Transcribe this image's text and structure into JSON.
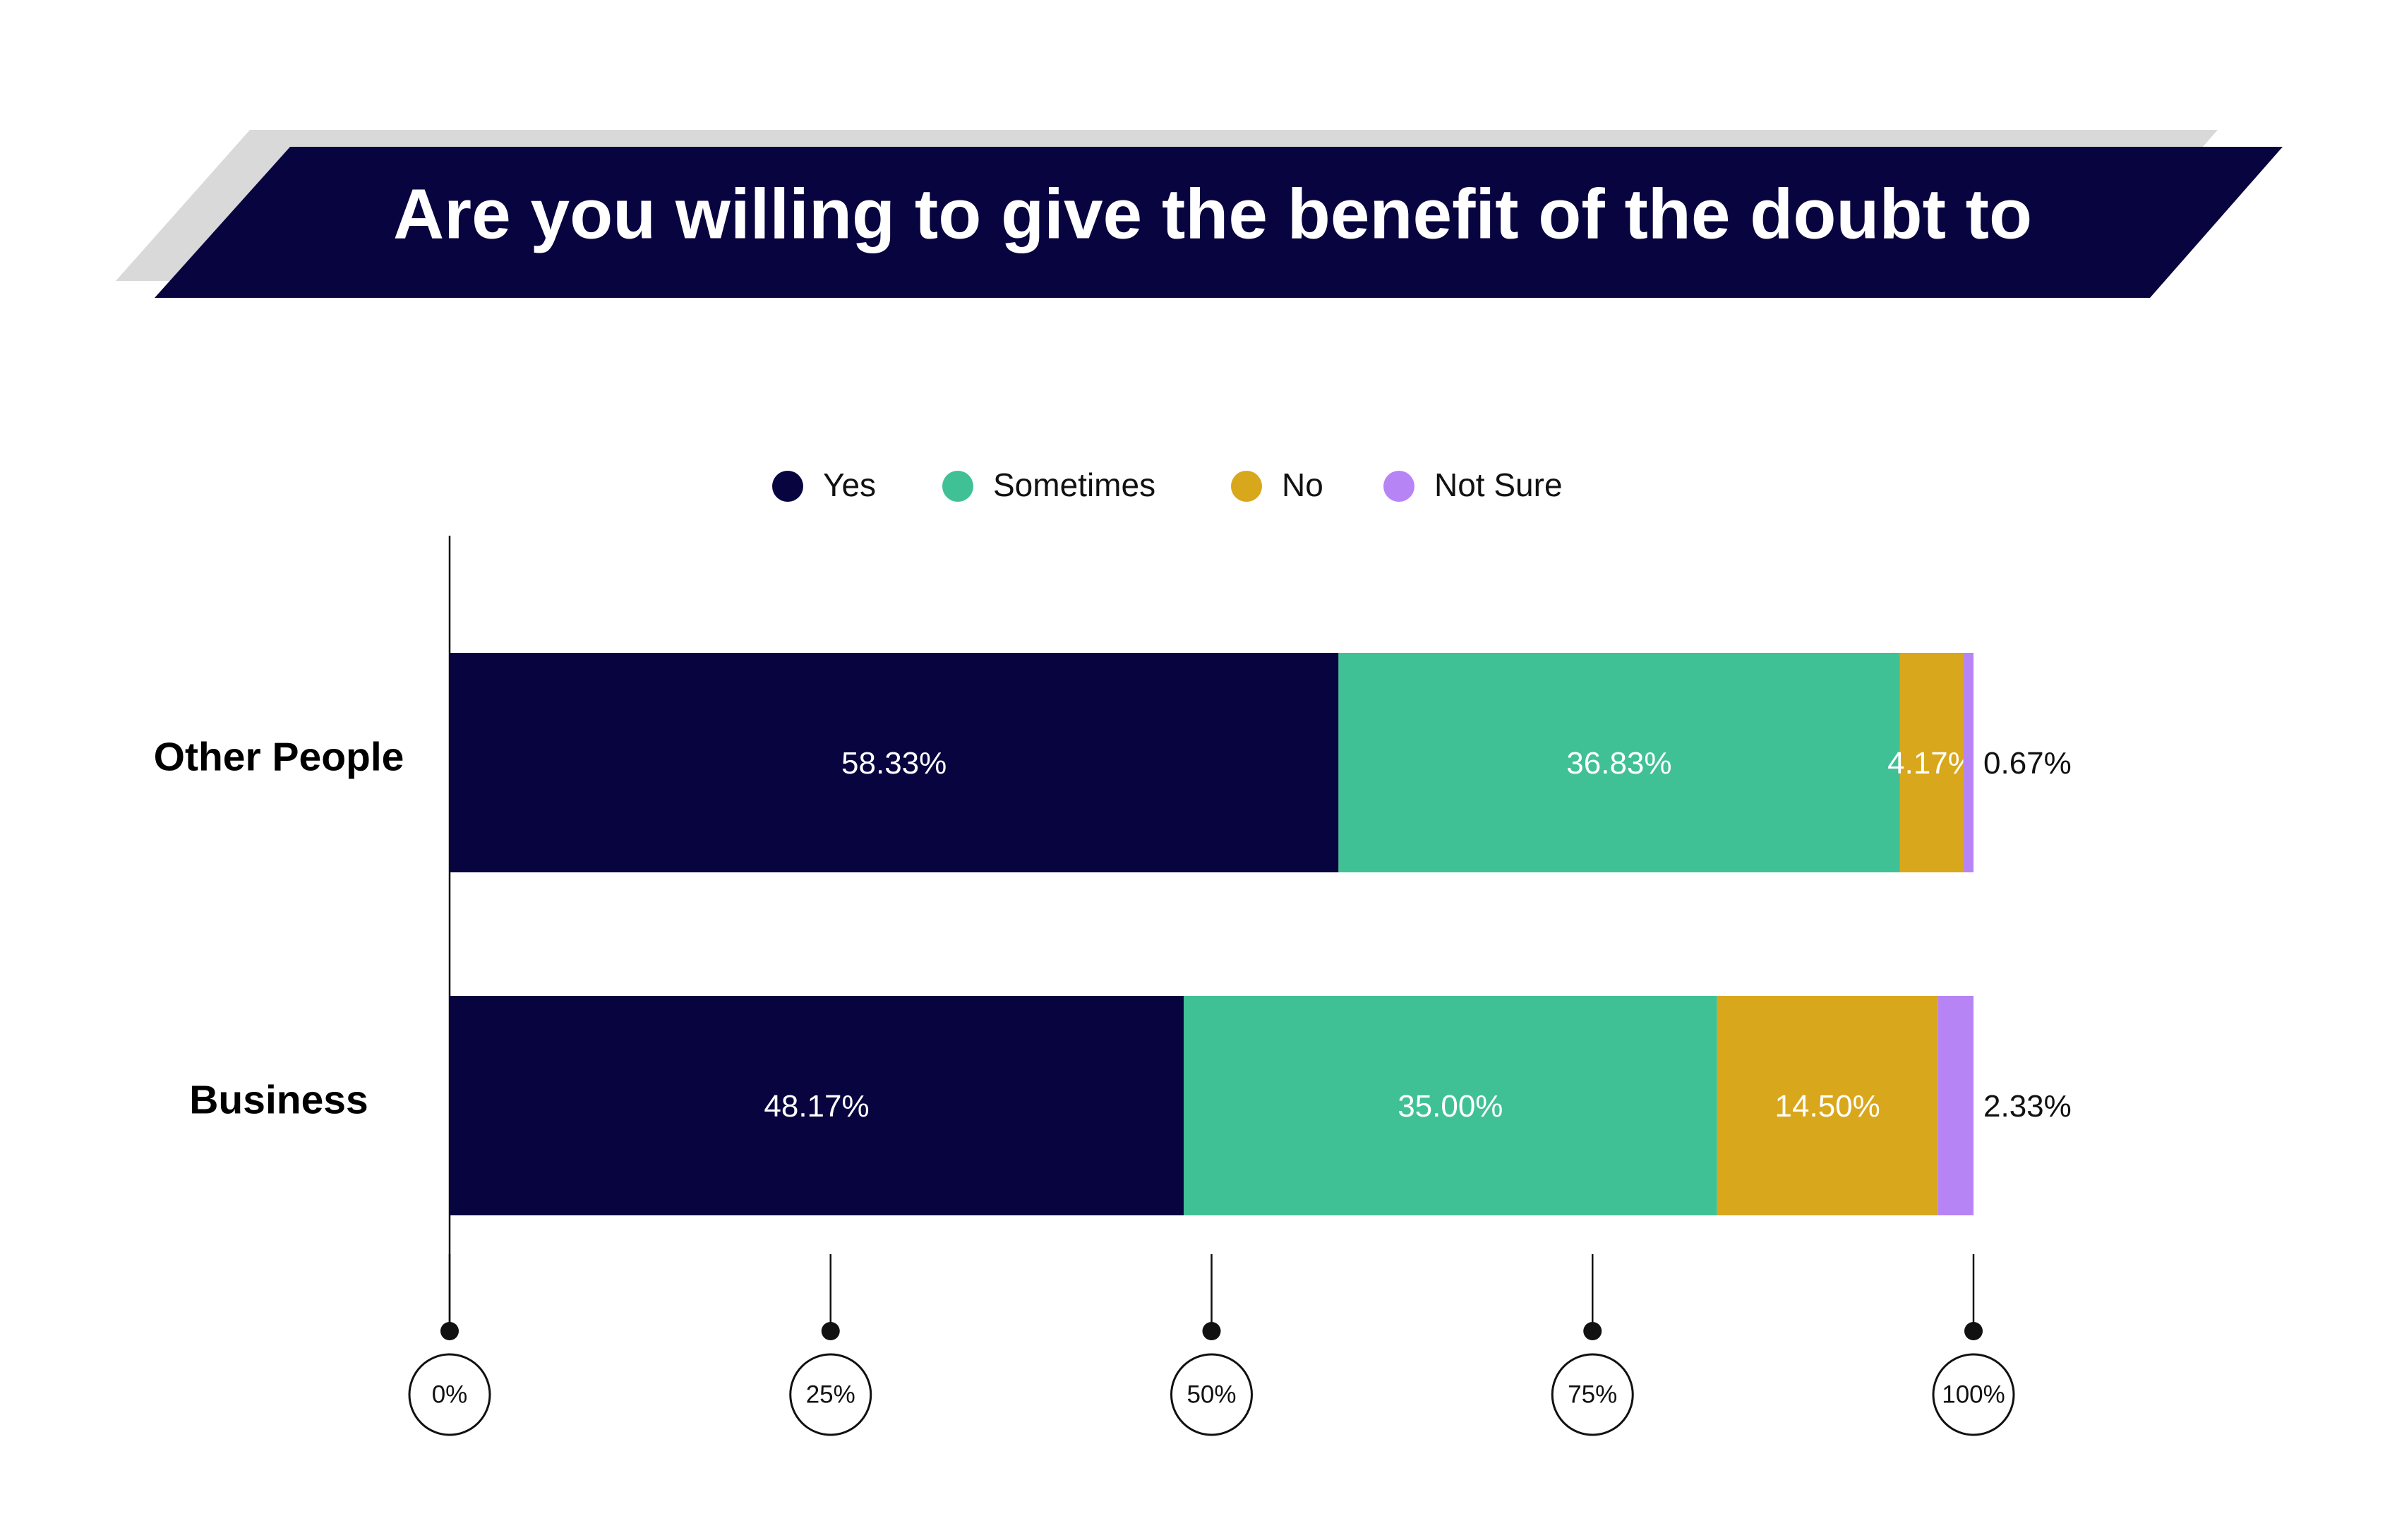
{
  "chart_data": {
    "type": "stacked-bar-horizontal",
    "title": "Are you willing to give the benefit of the doubt to",
    "categories": [
      "Other People",
      "Business"
    ],
    "series": [
      {
        "name": "Yes",
        "color": "#08043f",
        "values": [
          58.33,
          48.17
        ],
        "value_labels": [
          "58.33%",
          "48.17%"
        ]
      },
      {
        "name": "Sometimes",
        "color": "#40c195",
        "values": [
          36.83,
          35.0
        ],
        "value_labels": [
          "36.83%",
          "35.00%"
        ]
      },
      {
        "name": "No",
        "color": "#d9a71c",
        "values": [
          4.17,
          14.5
        ],
        "value_labels": [
          "4.17%",
          "14.50%"
        ]
      },
      {
        "name": "Not Sure",
        "color": "#b784f5",
        "values": [
          0.67,
          2.33
        ],
        "value_labels": [
          "0.67%",
          "2.33%"
        ]
      }
    ],
    "xlim": [
      0,
      100
    ],
    "xticks": [
      {
        "value": 0,
        "label": "0%"
      },
      {
        "value": 25,
        "label": "25%"
      },
      {
        "value": 50,
        "label": "50%"
      },
      {
        "value": 75,
        "label": "75%"
      },
      {
        "value": 100,
        "label": "100%"
      }
    ],
    "legend": "top"
  }
}
